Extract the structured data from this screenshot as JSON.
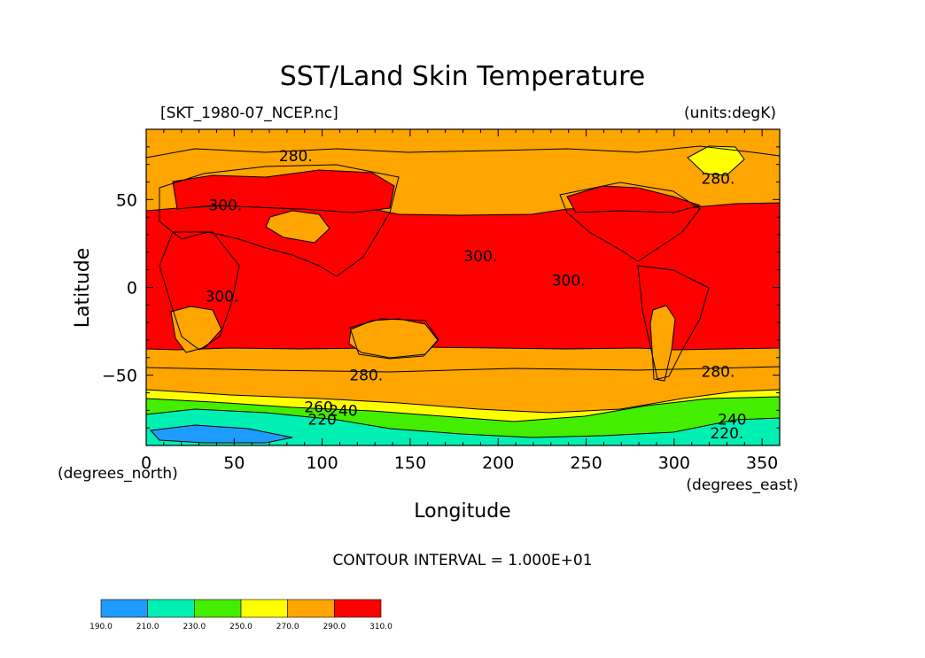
{
  "chart_data": {
    "type": "heatmap",
    "title": "SST/Land Skin Temperature",
    "subtitle_left": "[SKT_1980-07_NCEP.nc]",
    "subtitle_right": "(units:degK)",
    "xlabel": "Longitude",
    "ylabel": "Latitude",
    "x_units": "(degrees_east)",
    "y_units": "(degrees_north)",
    "xlim": [
      0,
      360
    ],
    "ylim": [
      -90,
      90
    ],
    "x_ticks": [
      0,
      50,
      100,
      150,
      200,
      250,
      300,
      350
    ],
    "y_ticks": [
      -50,
      0,
      50
    ],
    "x_tick_labels": [
      "0",
      "50",
      "100",
      "150",
      "200",
      "250",
      "300",
      "350"
    ],
    "y_tick_labels": [
      "−50",
      "0",
      "50"
    ],
    "contour_interval_text": "CONTOUR INTERVAL = 1.000E+01",
    "colorbar": {
      "levels": [
        190,
        210,
        230,
        250,
        270,
        290,
        310
      ],
      "level_labels": [
        "190.0",
        "210.0",
        "230.0",
        "250.0",
        "270.0",
        "290.0",
        "310.0"
      ],
      "colors": [
        "#1e9bff",
        "#00f0b4",
        "#44ee00",
        "#ffff00",
        "#ffa500",
        "#ff0000"
      ]
    },
    "contour_labels": [
      {
        "text": "280.",
        "lon": 85,
        "lat": 75
      },
      {
        "text": "280.",
        "lon": 325,
        "lat": 62
      },
      {
        "text": "300.",
        "lon": 45,
        "lat": 47
      },
      {
        "text": "300.",
        "lon": 190,
        "lat": 18
      },
      {
        "text": "300.",
        "lon": 240,
        "lat": 4
      },
      {
        "text": "300.",
        "lon": 43,
        "lat": -5
      },
      {
        "text": "280.",
        "lon": 125,
        "lat": -50
      },
      {
        "text": "280.",
        "lon": 325,
        "lat": -48
      },
      {
        "text": "260",
        "lon": 98,
        "lat": -68
      },
      {
        "text": "240",
        "lon": 112,
        "lat": -70
      },
      {
        "text": "220",
        "lon": 100,
        "lat": -75
      },
      {
        "text": "240",
        "lon": 333,
        "lat": -75
      },
      {
        "text": "220.",
        "lon": 330,
        "lat": -83
      }
    ]
  }
}
